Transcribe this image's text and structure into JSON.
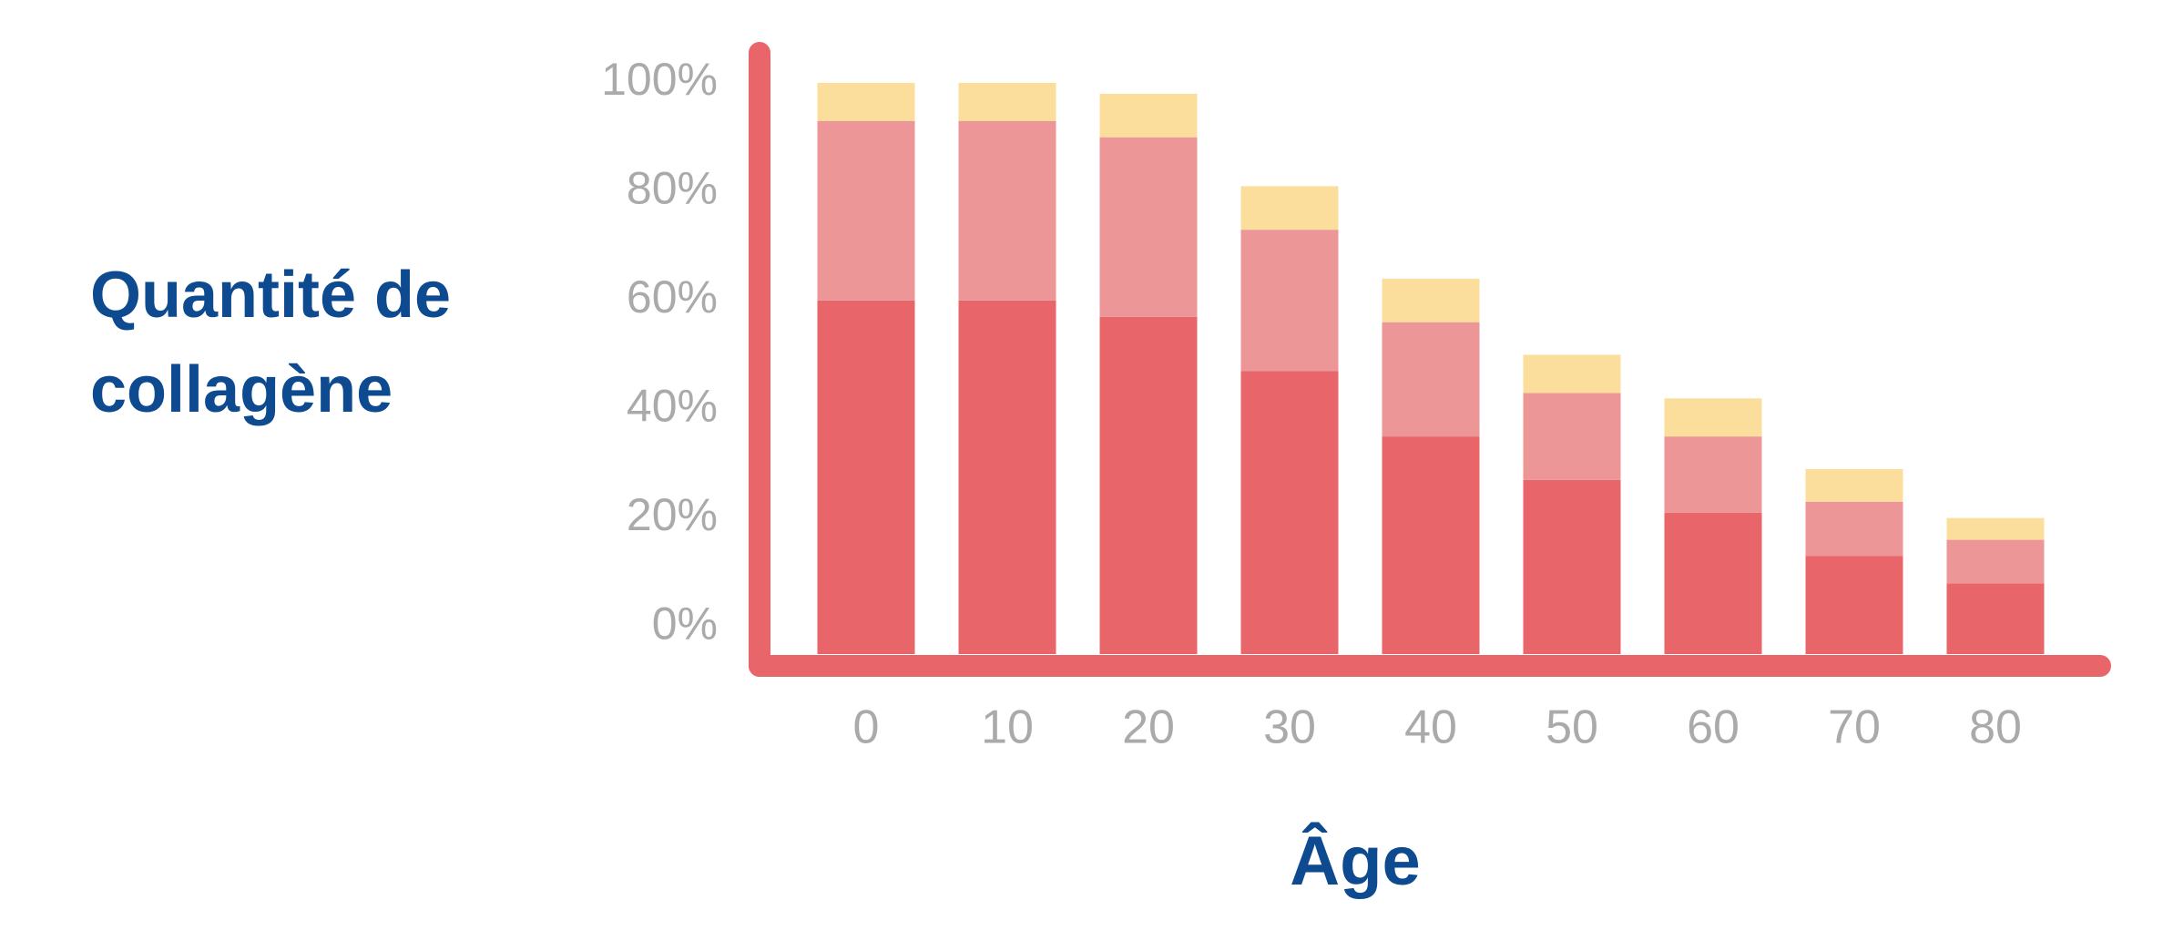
{
  "chart_data": {
    "type": "stacked_bar",
    "x_label": "Âge",
    "y_label": "Quantité de collagène",
    "categories": [
      "0",
      "10",
      "20",
      "30",
      "40",
      "50",
      "60",
      "70",
      "80"
    ],
    "series": [
      {
        "color": "#e8666a",
        "values": [
          60,
          60,
          57,
          47,
          35,
          27,
          21,
          13,
          8
        ]
      },
      {
        "color": "#ec9698",
        "values": [
          33,
          33,
          33,
          26,
          21,
          16,
          14,
          10,
          8
        ]
      },
      {
        "color": "#fbdd9c",
        "values": [
          7,
          7,
          8,
          8,
          8,
          7,
          7,
          6,
          4
        ]
      }
    ],
    "ylim": [
      -5,
      102
    ],
    "yticks": [
      {
        "value": 0,
        "label": "0%"
      },
      {
        "value": 20,
        "label": "20%"
      },
      {
        "value": 40,
        "label": "40%"
      },
      {
        "value": 60,
        "label": "60%"
      },
      {
        "value": 80,
        "label": "80%"
      },
      {
        "value": 100,
        "label": "100%"
      }
    ],
    "grid": false
  }
}
